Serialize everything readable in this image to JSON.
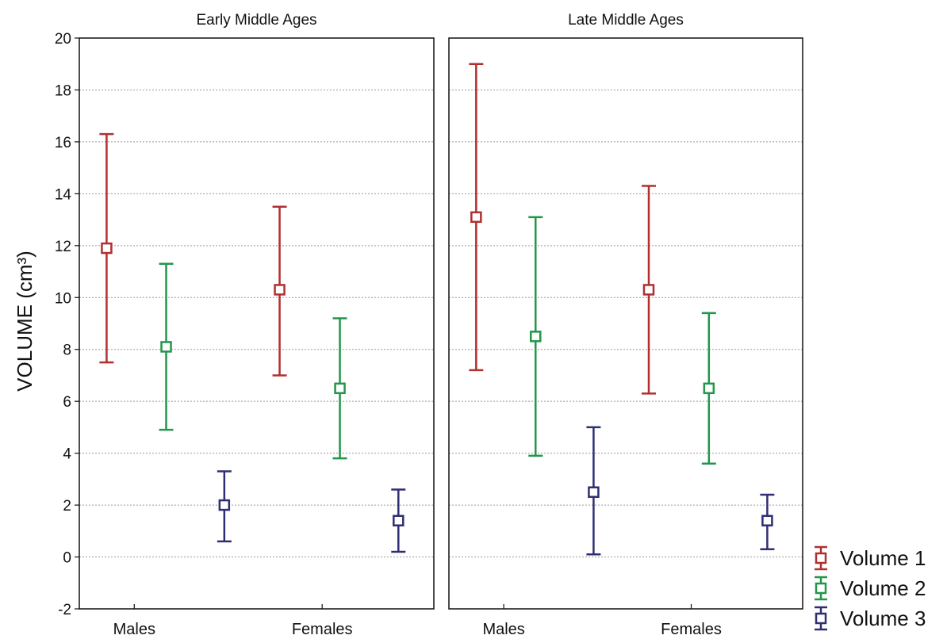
{
  "chart_data": {
    "type": "errorbar",
    "ylabel": "VOLUME (cm³)",
    "ylim": [
      -2,
      20
    ],
    "yticks": [
      -2,
      0,
      2,
      4,
      6,
      8,
      10,
      12,
      14,
      16,
      18,
      20
    ],
    "grid": true,
    "legend_position": "bottom-right",
    "categories": [
      "Males",
      "Females"
    ],
    "series": [
      {
        "name": "Volume 1",
        "color": "#b03030"
      },
      {
        "name": "Volume 2",
        "color": "#22964a"
      },
      {
        "name": "Volume 3",
        "color": "#2e2f72"
      }
    ],
    "panels": [
      {
        "title": "Early Middle Ages",
        "data": {
          "Males": [
            {
              "series": "Volume 1",
              "mean": 11.9,
              "low": 7.5,
              "high": 16.3
            },
            {
              "series": "Volume 2",
              "mean": 8.1,
              "low": 4.9,
              "high": 11.3
            },
            {
              "series": "Volume 3",
              "mean": 2.0,
              "low": 0.6,
              "high": 3.3
            }
          ],
          "Females": [
            {
              "series": "Volume 1",
              "mean": 10.3,
              "low": 7.0,
              "high": 13.5
            },
            {
              "series": "Volume 2",
              "mean": 6.5,
              "low": 3.8,
              "high": 9.2
            },
            {
              "series": "Volume 3",
              "mean": 1.4,
              "low": 0.2,
              "high": 2.6
            }
          ]
        }
      },
      {
        "title": "Late Middle Ages",
        "data": {
          "Males": [
            {
              "series": "Volume 1",
              "mean": 13.1,
              "low": 7.2,
              "high": 19.0
            },
            {
              "series": "Volume 2",
              "mean": 8.5,
              "low": 3.9,
              "high": 13.1
            },
            {
              "series": "Volume 3",
              "mean": 2.5,
              "low": 0.1,
              "high": 5.0
            }
          ],
          "Females": [
            {
              "series": "Volume 1",
              "mean": 10.3,
              "low": 6.3,
              "high": 14.3
            },
            {
              "series": "Volume 2",
              "mean": 6.5,
              "low": 3.6,
              "high": 9.4
            },
            {
              "series": "Volume 3",
              "mean": 1.4,
              "low": 0.3,
              "high": 2.4
            }
          ]
        }
      }
    ]
  }
}
